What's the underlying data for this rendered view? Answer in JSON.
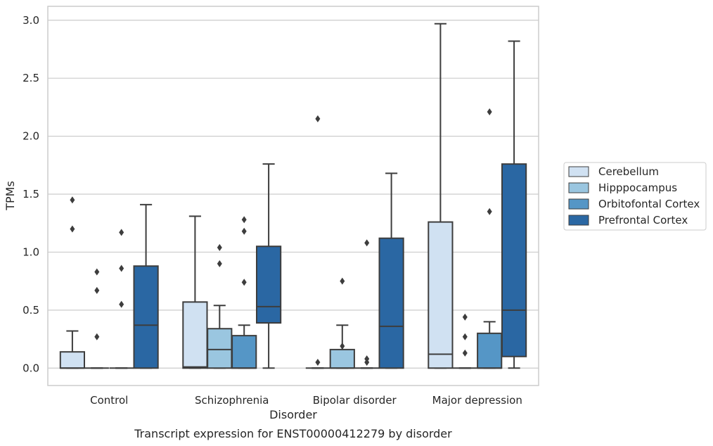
{
  "chart_data": {
    "type": "box",
    "title": "",
    "caption": "Transcript expression for ENST00000412279 by disorder",
    "xlabel": "Disorder",
    "ylabel": "TPMs",
    "ylim": [
      -0.15,
      3.12
    ],
    "yticks": [
      0.0,
      0.5,
      1.0,
      1.5,
      2.0,
      2.5,
      3.0
    ],
    "ytick_labels": [
      "0.0",
      "0.5",
      "1.0",
      "1.5",
      "2.0",
      "2.5",
      "3.0"
    ],
    "grid": true,
    "legend_position": "right",
    "categories": [
      "Control",
      "Schizophrenia",
      "Bipolar disorder",
      "Major depression"
    ],
    "series": [
      {
        "name": "Cerebellum",
        "color": "#d0e1f2",
        "boxes": [
          {
            "whisker_low": 0.0,
            "q1": 0.0,
            "median": 0.0,
            "q3": 0.14,
            "whisker_high": 0.32,
            "outliers": [
              1.2,
              1.45
            ]
          },
          {
            "whisker_low": 0.0,
            "q1": 0.0,
            "median": 0.01,
            "q3": 0.57,
            "whisker_high": 1.31,
            "outliers": []
          },
          {
            "whisker_low": 0.0,
            "q1": 0.0,
            "median": 0.0,
            "q3": 0.0,
            "whisker_high": 0.0,
            "outliers": [
              0.05,
              2.15
            ]
          },
          {
            "whisker_low": 0.0,
            "q1": 0.0,
            "median": 0.12,
            "q3": 1.26,
            "whisker_high": 2.97,
            "outliers": []
          }
        ]
      },
      {
        "name": "Hipppocampus",
        "color": "#9ac6e0",
        "boxes": [
          {
            "whisker_low": 0.0,
            "q1": 0.0,
            "median": 0.0,
            "q3": 0.0,
            "whisker_high": 0.0,
            "outliers": [
              0.27,
              0.67,
              0.83
            ]
          },
          {
            "whisker_low": 0.0,
            "q1": 0.0,
            "median": 0.16,
            "q3": 0.34,
            "whisker_high": 0.54,
            "outliers": [
              0.9,
              1.04
            ]
          },
          {
            "whisker_low": 0.0,
            "q1": 0.0,
            "median": 0.0,
            "q3": 0.16,
            "whisker_high": 0.37,
            "outliers": [
              0.19,
              0.75
            ]
          },
          {
            "whisker_low": 0.0,
            "q1": 0.0,
            "median": 0.0,
            "q3": 0.0,
            "whisker_high": 0.0,
            "outliers": [
              0.13,
              0.27,
              0.44
            ]
          }
        ]
      },
      {
        "name": "Orbitofontal Cortex",
        "color": "#5596c6",
        "boxes": [
          {
            "whisker_low": 0.0,
            "q1": 0.0,
            "median": 0.0,
            "q3": 0.0,
            "whisker_high": 0.0,
            "outliers": [
              0.55,
              0.86,
              1.17
            ]
          },
          {
            "whisker_low": 0.0,
            "q1": 0.0,
            "median": 0.0,
            "q3": 0.28,
            "whisker_high": 0.37,
            "outliers": [
              0.74,
              1.18,
              1.28
            ]
          },
          {
            "whisker_low": 0.0,
            "q1": 0.0,
            "median": 0.0,
            "q3": 0.0,
            "whisker_high": 0.0,
            "outliers": [
              0.05,
              0.08,
              1.08
            ]
          },
          {
            "whisker_low": 0.0,
            "q1": 0.0,
            "median": 0.0,
            "q3": 0.3,
            "whisker_high": 0.4,
            "outliers": [
              1.35,
              2.21
            ]
          }
        ]
      },
      {
        "name": "Prefrontal Cortex",
        "color": "#2a67a3",
        "boxes": [
          {
            "whisker_low": 0.0,
            "q1": 0.0,
            "median": 0.37,
            "q3": 0.88,
            "whisker_high": 1.41,
            "outliers": []
          },
          {
            "whisker_low": 0.0,
            "q1": 0.39,
            "median": 0.53,
            "q3": 1.05,
            "whisker_high": 1.76,
            "outliers": []
          },
          {
            "whisker_low": 0.0,
            "q1": 0.0,
            "median": 0.36,
            "q3": 1.12,
            "whisker_high": 1.68,
            "outliers": []
          },
          {
            "whisker_low": 0.0,
            "q1": 0.1,
            "median": 0.5,
            "q3": 1.76,
            "whisker_high": 2.82,
            "outliers": []
          }
        ]
      }
    ]
  },
  "colors": {
    "grid": "#cccccc",
    "frame": "#cccccc",
    "edge": "#3d3d3d",
    "text": "#262626"
  }
}
